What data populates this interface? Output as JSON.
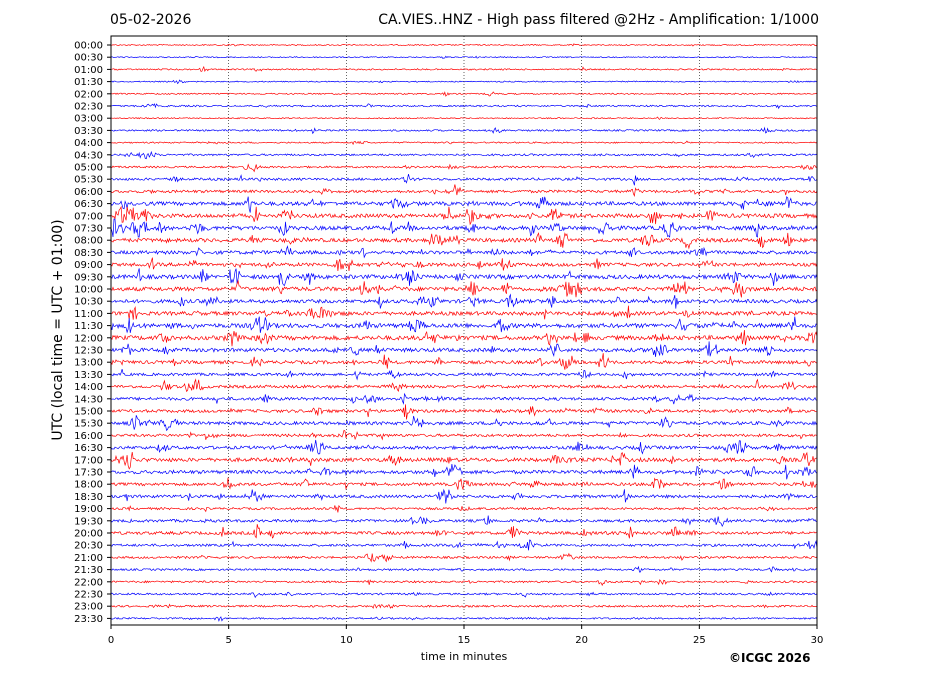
{
  "header": {
    "date": "05-02-2026",
    "title": "CA.VIES..HNZ - High pass filtered @2Hz - Amplification: 1/1000"
  },
  "footer": {
    "copyright": "©ICGC 2026"
  },
  "colors": {
    "trace_a": "#ff0000",
    "trace_b": "#0000ff",
    "grid": "#000000"
  },
  "chart_data": {
    "type": "line",
    "title": "CA.VIES..HNZ - High pass filtered @2Hz - Amplification: 1/1000",
    "xlabel": "time in minutes",
    "ylabel": "UTC (local time = UTC + 01:00)",
    "xlim": [
      0,
      30
    ],
    "x_ticks": [
      0,
      5,
      10,
      15,
      20,
      25,
      30
    ],
    "grid": "vertical dotted at 5, 10, 15, 20, 25",
    "row_labels": [
      "00:00",
      "00:30",
      "01:00",
      "01:30",
      "02:00",
      "02:30",
      "03:00",
      "03:30",
      "04:00",
      "04:30",
      "05:00",
      "05:30",
      "06:00",
      "06:30",
      "07:00",
      "07:30",
      "08:00",
      "08:30",
      "09:00",
      "09:30",
      "10:00",
      "10:30",
      "11:00",
      "11:30",
      "12:00",
      "12:30",
      "13:00",
      "13:30",
      "14:00",
      "14:30",
      "15:00",
      "15:30",
      "16:00",
      "16:30",
      "17:00",
      "17:30",
      "18:00",
      "18:30",
      "19:00",
      "19:30",
      "20:00",
      "20:30",
      "21:00",
      "21:30",
      "22:00",
      "22:30",
      "23:00",
      "23:30"
    ],
    "series_colors": [
      "#ff0000",
      "#0000ff"
    ],
    "noise_level": [
      0.2,
      0.2,
      0.3,
      0.2,
      0.3,
      0.4,
      0.2,
      0.4,
      0.3,
      0.5,
      0.5,
      0.7,
      0.8,
      1.2,
      1.3,
      1.3,
      1.2,
      1.1,
      1.1,
      1.3,
      1.3,
      1.1,
      1.2,
      1.4,
      1.4,
      1.2,
      1.0,
      0.8,
      0.9,
      0.9,
      0.9,
      1.0,
      0.8,
      1.0,
      1.2,
      1.1,
      0.9,
      0.9,
      0.6,
      0.8,
      0.9,
      0.7,
      0.6,
      0.5,
      0.5,
      0.5,
      0.5,
      0.4
    ]
  }
}
